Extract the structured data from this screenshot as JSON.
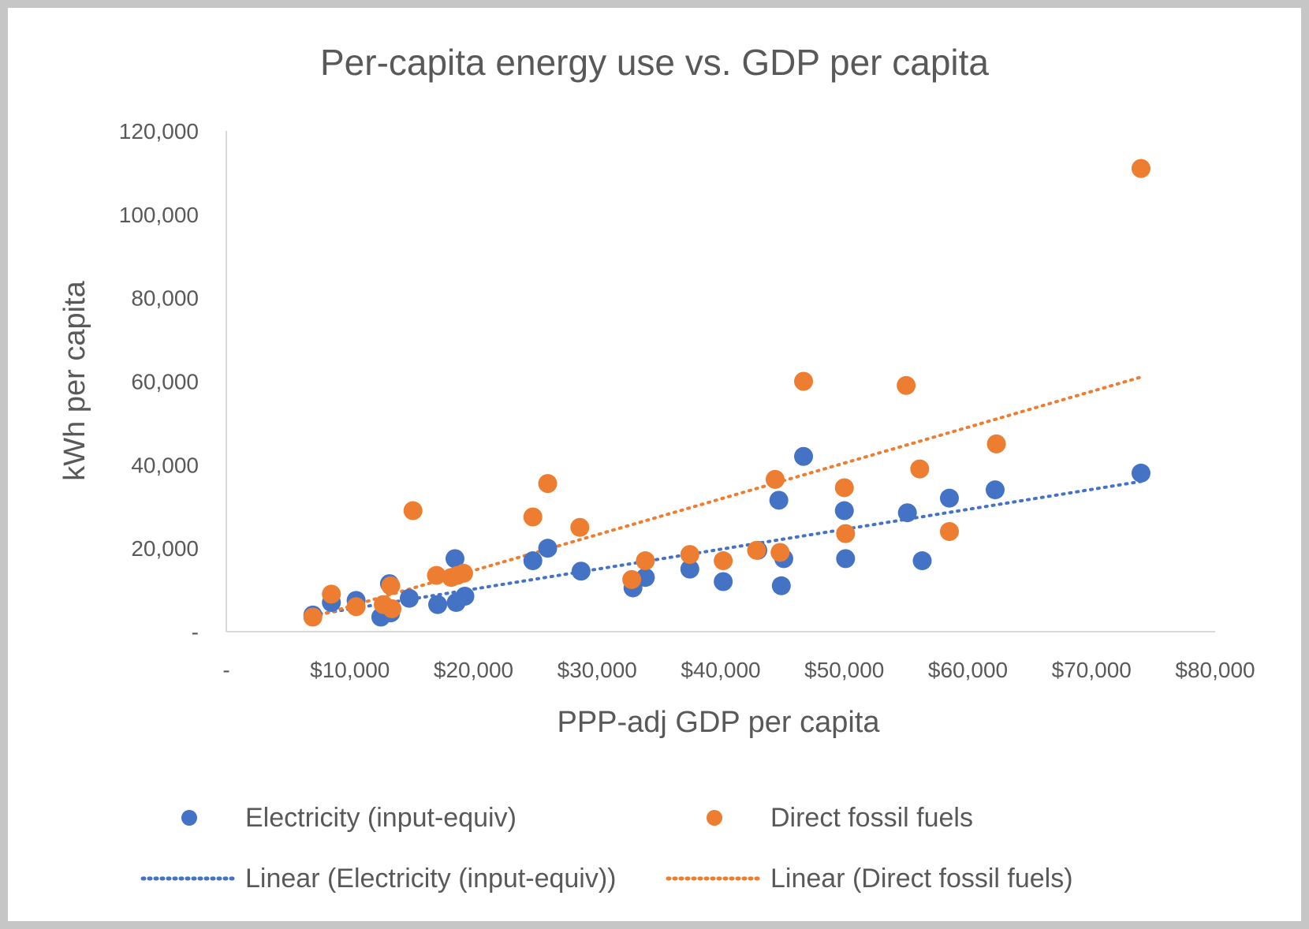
{
  "chart_data": {
    "type": "scatter",
    "title": "Per-capita energy use vs. GDP per capita",
    "xlabel": "PPP-adj GDP per capita",
    "ylabel": "kWh per capita",
    "xlim": [
      0,
      80000
    ],
    "ylim": [
      0,
      120000
    ],
    "x_ticks": [
      {
        "value": 0,
        "label": "-"
      },
      {
        "value": 10000,
        "label": "$10,000"
      },
      {
        "value": 20000,
        "label": "$20,000"
      },
      {
        "value": 30000,
        "label": "$30,000"
      },
      {
        "value": 40000,
        "label": "$40,000"
      },
      {
        "value": 50000,
        "label": "$50,000"
      },
      {
        "value": 60000,
        "label": "$60,000"
      },
      {
        "value": 70000,
        "label": "$70,000"
      },
      {
        "value": 80000,
        "label": "$80,000"
      }
    ],
    "y_ticks": [
      {
        "value": 0,
        "label": "-"
      },
      {
        "value": 20000,
        "label": "20,000"
      },
      {
        "value": 40000,
        "label": "40,000"
      },
      {
        "value": 60000,
        "label": "60,000"
      },
      {
        "value": 80000,
        "label": "80,000"
      },
      {
        "value": 100000,
        "label": "100,000"
      },
      {
        "value": 120000,
        "label": "120,000"
      }
    ],
    "grid": false,
    "legend_position": "bottom",
    "series": [
      {
        "name": "Electricity (input-equiv)",
        "color": "#4472c4",
        "points": [
          [
            7000,
            4000
          ],
          [
            8500,
            7000
          ],
          [
            10500,
            7500
          ],
          [
            12500,
            3500
          ],
          [
            13200,
            11500
          ],
          [
            13300,
            4500
          ],
          [
            14800,
            8000
          ],
          [
            17100,
            6500
          ],
          [
            18500,
            17500
          ],
          [
            18600,
            7000
          ],
          [
            19300,
            8500
          ],
          [
            24800,
            17000
          ],
          [
            26000,
            20000
          ],
          [
            28700,
            14500
          ],
          [
            32900,
            10500
          ],
          [
            33900,
            13000
          ],
          [
            37500,
            15000
          ],
          [
            40200,
            12000
          ],
          [
            43000,
            19500
          ],
          [
            44700,
            31500
          ],
          [
            44900,
            11000
          ],
          [
            45100,
            17500
          ],
          [
            46700,
            42000
          ],
          [
            50000,
            29000
          ],
          [
            50100,
            17500
          ],
          [
            55100,
            28500
          ],
          [
            56300,
            17000
          ],
          [
            58500,
            32000
          ],
          [
            62200,
            34000
          ],
          [
            74000,
            38000
          ]
        ],
        "trendline": {
          "name": "Linear (Electricity (input-equiv))",
          "x": [
            7000,
            74000
          ],
          "y": [
            4000,
            36000
          ]
        }
      },
      {
        "name": "Direct fossil fuels",
        "color": "#ed7d31",
        "points": [
          [
            7000,
            3500
          ],
          [
            8500,
            9000
          ],
          [
            10500,
            6000
          ],
          [
            12700,
            6500
          ],
          [
            13300,
            11000
          ],
          [
            13400,
            5500
          ],
          [
            15100,
            29000
          ],
          [
            17000,
            13500
          ],
          [
            18200,
            13000
          ],
          [
            18700,
            13500
          ],
          [
            19200,
            14000
          ],
          [
            24800,
            27500
          ],
          [
            26000,
            35500
          ],
          [
            28600,
            25000
          ],
          [
            32800,
            12500
          ],
          [
            33900,
            17000
          ],
          [
            37500,
            18500
          ],
          [
            40200,
            17000
          ],
          [
            42900,
            19500
          ],
          [
            44400,
            36500
          ],
          [
            44800,
            19000
          ],
          [
            46700,
            60000
          ],
          [
            50000,
            34500
          ],
          [
            50100,
            23500
          ],
          [
            55000,
            59000
          ],
          [
            56100,
            39000
          ],
          [
            58500,
            24000
          ],
          [
            62300,
            45000
          ],
          [
            74000,
            111000
          ]
        ],
        "trendline": {
          "name": "Linear (Direct fossil fuels)",
          "x": [
            7000,
            74000
          ],
          "y": [
            3500,
            61000
          ]
        }
      }
    ]
  }
}
